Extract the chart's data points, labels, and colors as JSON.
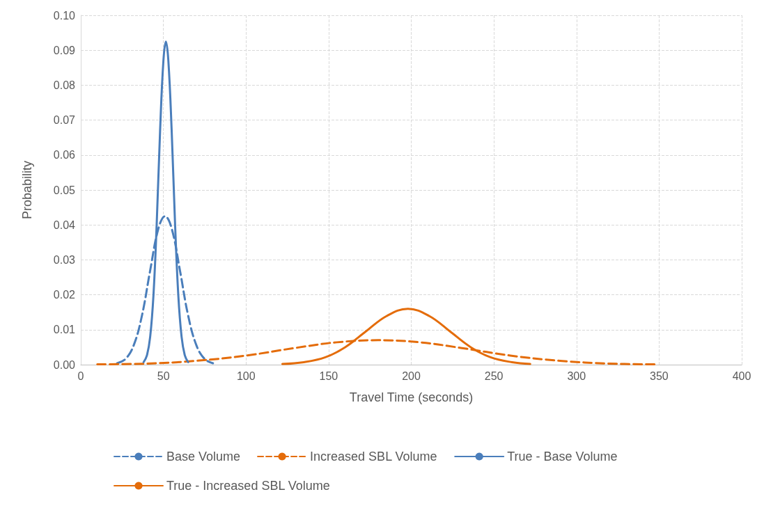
{
  "chart_data": {
    "type": "line",
    "xlabel": "Travel Time (seconds)",
    "ylabel": "Probability",
    "xlim": [
      0,
      400
    ],
    "xticks": [
      0,
      50,
      100,
      150,
      200,
      250,
      300,
      350,
      400
    ],
    "ylim": [
      0,
      0.1
    ],
    "yticks": [
      {
        "value": 0,
        "label": "0.00"
      },
      {
        "value": 0.01,
        "label": "0.01"
      },
      {
        "value": 0.02,
        "label": "0.02"
      },
      {
        "value": 0.03,
        "label": "0.03"
      },
      {
        "value": 0.04,
        "label": "0.04"
      },
      {
        "value": 0.05,
        "label": "0.05"
      },
      {
        "value": 0.06,
        "label": "0.06"
      },
      {
        "value": 0.07,
        "label": "0.07"
      },
      {
        "value": 0.08,
        "label": "0.08"
      },
      {
        "value": 0.09,
        "label": "0.09"
      },
      {
        "value": 0.1,
        "label": "0.10"
      }
    ],
    "grid": true,
    "legend": "bottom",
    "marker": "none",
    "series": [
      {
        "name": "Base Volume",
        "color": "#4a7ebb",
        "line_style": "dashed",
        "x": [
          22,
          27,
          32,
          37,
          42,
          47,
          51,
          55,
          60,
          65,
          70,
          75,
          80
        ],
        "values": [
          0.0004,
          0.0016,
          0.0055,
          0.014,
          0.027,
          0.039,
          0.0425,
          0.039,
          0.027,
          0.014,
          0.0055,
          0.0016,
          0.0004
        ]
      },
      {
        "name": "Increased SBL Volume",
        "color": "#e46c0a",
        "line_style": "dashed",
        "x": [
          10,
          40,
          70,
          100,
          130,
          155,
          180,
          205,
          230,
          260,
          290,
          320,
          348
        ],
        "values": [
          0.0001,
          0.0003,
          0.0011,
          0.0026,
          0.0048,
          0.0064,
          0.007,
          0.0064,
          0.0048,
          0.0026,
          0.0011,
          0.0003,
          0.0001
        ]
      },
      {
        "name": "True - Base Volume",
        "color": "#4a7ebb",
        "line_style": "solid",
        "x": [
          38,
          40,
          42,
          44,
          46,
          48,
          50,
          51.5,
          53,
          55,
          57,
          59,
          61,
          63,
          65
        ],
        "values": [
          0.0007,
          0.0026,
          0.008,
          0.02,
          0.041,
          0.067,
          0.087,
          0.0925,
          0.087,
          0.067,
          0.041,
          0.02,
          0.008,
          0.0026,
          0.0007
        ]
      },
      {
        "name": "True - Increased SBL Volume",
        "color": "#e46c0a",
        "line_style": "solid",
        "x": [
          122,
          135,
          148,
          160,
          172,
          185,
          198,
          211,
          224,
          236,
          248,
          261,
          272
        ],
        "values": [
          0.0002,
          0.0007,
          0.0021,
          0.005,
          0.0093,
          0.0139,
          0.016,
          0.0139,
          0.0093,
          0.005,
          0.0021,
          0.0007,
          0.0002
        ]
      }
    ]
  }
}
